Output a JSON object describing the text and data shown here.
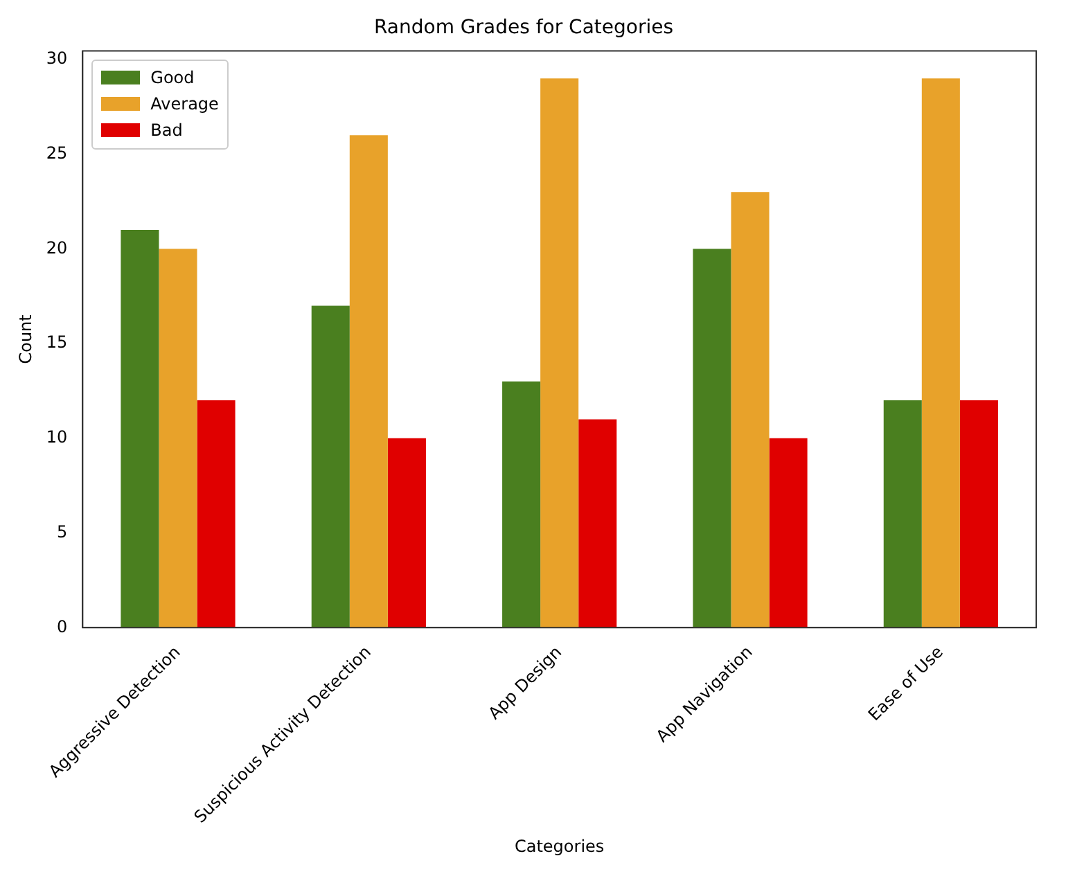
{
  "chart_data": {
    "type": "bar",
    "title": "Random Grades for Categories",
    "xlabel": "Categories",
    "ylabel": "Count",
    "categories": [
      "Aggressive Detection",
      "Suspicious Activity Detection",
      "App Design",
      "App Navigation",
      "Ease of Use"
    ],
    "series": [
      {
        "name": "Good",
        "color": "#4a7f1f",
        "values": [
          21,
          17,
          13,
          20,
          12
        ]
      },
      {
        "name": "Average",
        "color": "#e8a22a",
        "values": [
          20,
          26,
          29,
          23,
          29
        ]
      },
      {
        "name": "Bad",
        "color": "#e00000",
        "values": [
          12,
          10,
          11,
          10,
          12
        ]
      }
    ],
    "ylim": [
      0,
      30.45
    ],
    "yticks": [
      0,
      5,
      10,
      15,
      20,
      25,
      30
    ],
    "grid": false,
    "legend": "top left"
  }
}
